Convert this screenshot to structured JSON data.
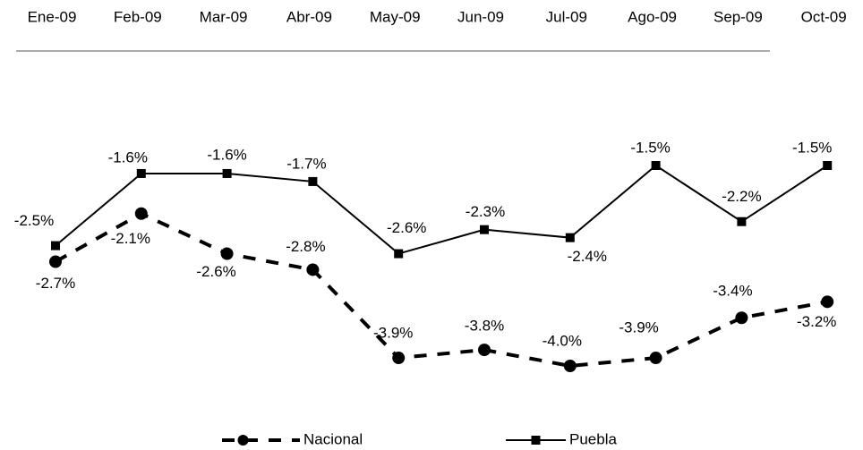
{
  "chart_data": {
    "type": "line",
    "categories": [
      "Ene-09",
      "Feb-09",
      "Mar-09",
      "Abr-09",
      "May-09",
      "Jun-09",
      "Jul-09",
      "Ago-09",
      "Sep-09",
      "Oct-09"
    ],
    "series": [
      {
        "name": "Nacional",
        "color": "#000000",
        "values": [
          -2.7,
          -2.1,
          -2.6,
          -2.8,
          -3.9,
          -3.8,
          -4.0,
          -3.9,
          -3.4,
          -3.2
        ],
        "value_labels": [
          "-2.7%",
          "-2.1%",
          "-2.6%",
          "-2.8%",
          "-3.9%",
          "-3.8%",
          "-4.0%",
          "-3.9%",
          "-3.4%",
          "-3.2%"
        ]
      },
      {
        "name": "Puebla",
        "color": "#000000",
        "values": [
          -2.5,
          -1.6,
          -1.6,
          -1.7,
          -2.6,
          -2.3,
          -2.4,
          -1.5,
          -2.2,
          -1.5
        ],
        "value_labels": [
          "-2.5%",
          "-1.6%",
          "-1.6%",
          "-1.7%",
          "-2.6%",
          "-2.3%",
          "-2.4%",
          "-1.5%",
          "-2.2%",
          "-1.5%"
        ]
      }
    ]
  }
}
